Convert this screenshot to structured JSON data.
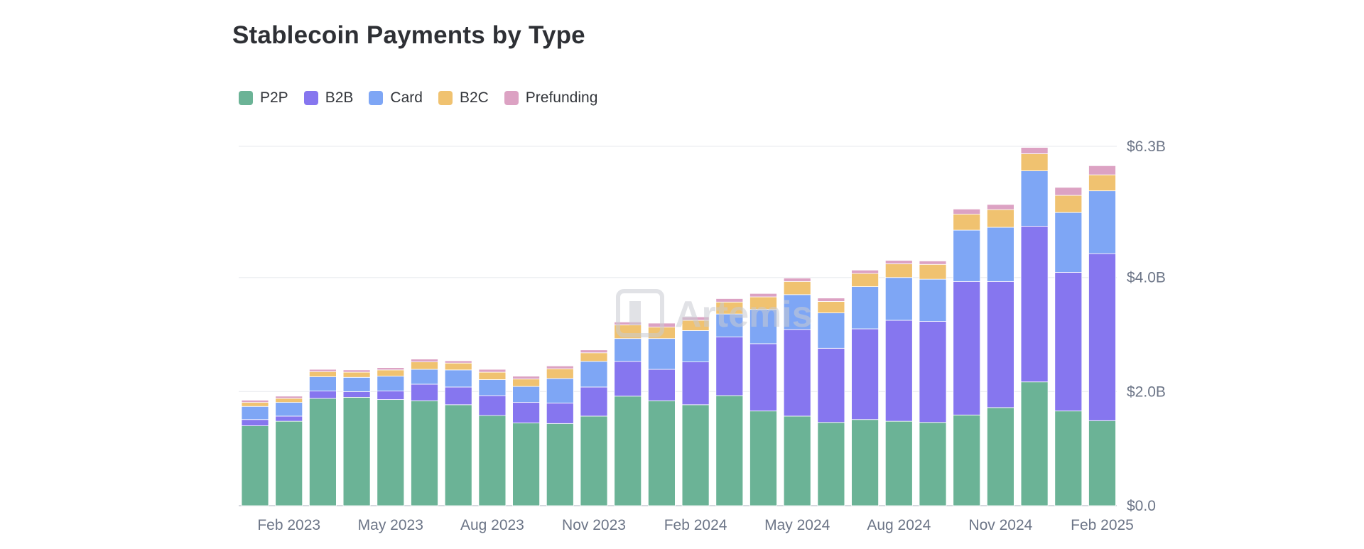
{
  "title": "Stablecoin Payments by Type",
  "watermark": "Artemis",
  "legend": [
    {
      "name": "P2P",
      "color": "#6bb396"
    },
    {
      "name": "B2B",
      "color": "#8676ef"
    },
    {
      "name": "Card",
      "color": "#7ea6f5"
    },
    {
      "name": "B2C",
      "color": "#f0c270"
    },
    {
      "name": "Prefunding",
      "color": "#dca2c3"
    }
  ],
  "chart_data": {
    "type": "bar",
    "stacked": true,
    "title": "Stablecoin Payments by Type",
    "ylim": [
      0,
      6.3
    ],
    "y_ticks": [
      0,
      2.0,
      4.0,
      6.3
    ],
    "y_tick_labels": [
      "$0.0",
      "$2.0B",
      "$4.0B",
      "$6.3B"
    ],
    "y_axis_position": "right",
    "grid": true,
    "legend_position": "top-left",
    "categories": [
      "Jan 2023",
      "Feb 2023",
      "Mar 2023",
      "Apr 2023",
      "May 2023",
      "Jun 2023",
      "Jul 2023",
      "Aug 2023",
      "Sep 2023",
      "Oct 2023",
      "Nov 2023",
      "Dec 2023",
      "Jan 2024",
      "Feb 2024",
      "Mar 2024",
      "Apr 2024",
      "May 2024",
      "Jun 2024",
      "Jul 2024",
      "Aug 2024",
      "Sep 2024",
      "Oct 2024",
      "Nov 2024",
      "Dec 2024",
      "Jan 2025",
      "Feb 2025"
    ],
    "x_tick_labels": [
      {
        "index": 1,
        "label": "Feb 2023"
      },
      {
        "index": 4,
        "label": "May 2023"
      },
      {
        "index": 7,
        "label": "Aug 2023"
      },
      {
        "index": 10,
        "label": "Nov 2023"
      },
      {
        "index": 13,
        "label": "Feb 2024"
      },
      {
        "index": 16,
        "label": "May 2024"
      },
      {
        "index": 19,
        "label": "Aug 2024"
      },
      {
        "index": 22,
        "label": "Nov 2024"
      },
      {
        "index": 25,
        "label": "Feb 2025"
      }
    ],
    "series": [
      {
        "name": "P2P",
        "color": "#6bb396",
        "values": [
          1.4,
          1.48,
          1.88,
          1.9,
          1.86,
          1.84,
          1.77,
          1.58,
          1.45,
          1.44,
          1.57,
          1.92,
          1.84,
          1.77,
          1.93,
          1.66,
          1.57,
          1.46,
          1.51,
          1.48,
          1.46,
          1.59,
          1.72,
          2.17,
          1.66,
          1.49
        ]
      },
      {
        "name": "B2B",
        "color": "#8676ef",
        "values": [
          0.11,
          0.09,
          0.13,
          0.1,
          0.15,
          0.29,
          0.31,
          0.35,
          0.36,
          0.36,
          0.51,
          0.61,
          0.55,
          0.75,
          1.03,
          1.18,
          1.52,
          1.3,
          1.59,
          1.77,
          1.77,
          2.34,
          2.21,
          2.73,
          2.43,
          2.93
        ]
      },
      {
        "name": "Card",
        "color": "#7ea6f5",
        "values": [
          0.23,
          0.24,
          0.25,
          0.25,
          0.26,
          0.26,
          0.3,
          0.28,
          0.28,
          0.43,
          0.45,
          0.4,
          0.54,
          0.55,
          0.4,
          0.6,
          0.61,
          0.62,
          0.74,
          0.75,
          0.74,
          0.9,
          0.95,
          0.97,
          1.05,
          1.1
        ]
      },
      {
        "name": "B2C",
        "color": "#f0c270",
        "values": [
          0.07,
          0.07,
          0.09,
          0.09,
          0.11,
          0.13,
          0.12,
          0.13,
          0.13,
          0.17,
          0.15,
          0.24,
          0.2,
          0.18,
          0.21,
          0.22,
          0.23,
          0.2,
          0.23,
          0.24,
          0.26,
          0.28,
          0.31,
          0.3,
          0.3,
          0.28
        ]
      },
      {
        "name": "Prefunding",
        "color": "#dca2c3",
        "values": [
          0.04,
          0.04,
          0.04,
          0.04,
          0.04,
          0.05,
          0.04,
          0.05,
          0.05,
          0.05,
          0.05,
          0.05,
          0.07,
          0.06,
          0.06,
          0.06,
          0.06,
          0.06,
          0.06,
          0.06,
          0.06,
          0.09,
          0.09,
          0.11,
          0.14,
          0.16
        ]
      }
    ]
  }
}
